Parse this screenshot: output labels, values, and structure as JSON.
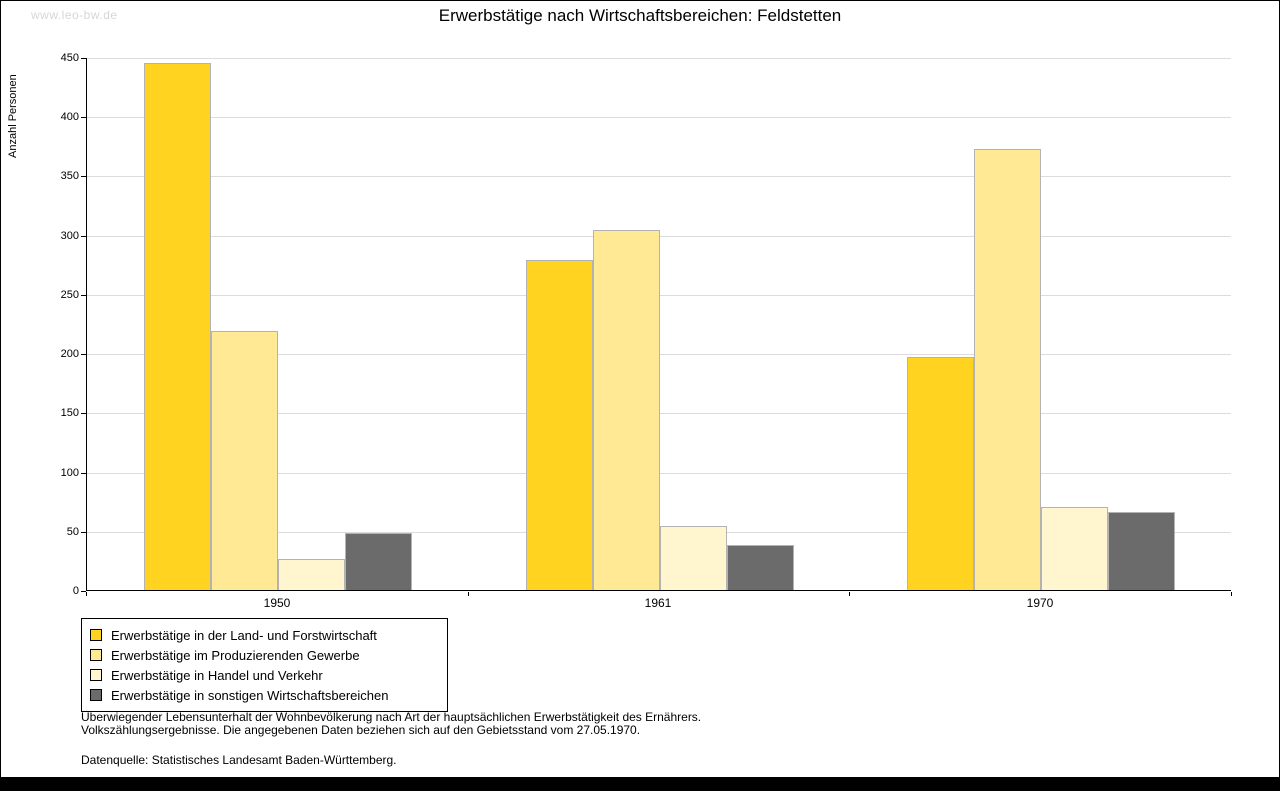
{
  "watermark": "www.leo-bw.de",
  "title": "Erwerbstätige nach Wirtschaftsbereichen: Feldstetten",
  "chart_data": {
    "type": "bar",
    "title": "Erwerbstätige nach Wirtschaftsbereichen: Feldstetten",
    "xlabel": "",
    "ylabel": "Anzahl Personen",
    "ylim": [
      0,
      450
    ],
    "yticks": [
      0,
      50,
      100,
      150,
      200,
      250,
      300,
      350,
      400,
      450
    ],
    "grid": true,
    "legend_position": "bottom-left",
    "categories": [
      "1950",
      "1961",
      "1970"
    ],
    "series": [
      {
        "name": "Erwerbstätige in der Land- und Forstwirtschaft",
        "color": "#FFD320",
        "values": [
          445,
          279,
          197
        ]
      },
      {
        "name": "Erwerbstätige im Produzierenden Gewerbe",
        "color": "#FFE994",
        "values": [
          219,
          304,
          372
        ]
      },
      {
        "name": "Erwerbstätige in Handel und Verkehr",
        "color": "#FFF5CE",
        "values": [
          26,
          54,
          70
        ]
      },
      {
        "name": "Erwerbstätige in sonstigen Wirtschaftsbereichen",
        "color": "#6B6B6B",
        "values": [
          48,
          38,
          66
        ]
      }
    ]
  },
  "footnotes": {
    "line1": "Überwiegender Lebensunterhalt der Wohnbevölkerung nach Art der hauptsächlichen Erwerbstätigkeit des Ernährers.",
    "line2": "Volkszählungsergebnisse. Die angegebenen Daten beziehen sich auf den Gebietsstand vom 27.05.1970.",
    "source": "Datenquelle: Statistisches Landesamt Baden-Württemberg."
  }
}
